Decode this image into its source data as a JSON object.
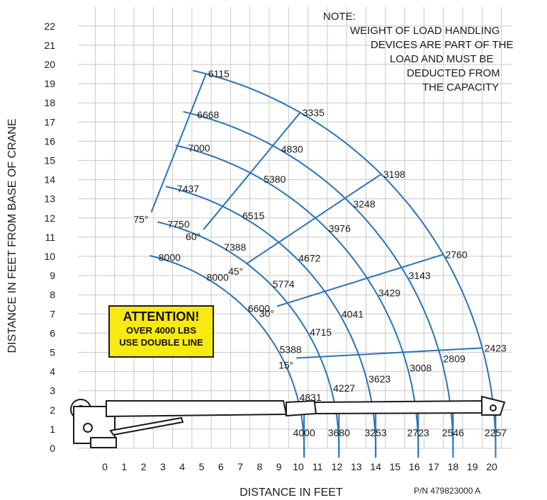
{
  "axes": {
    "y_title": "DISTANCE IN FEET FROM BASE OF CRANE",
    "x_title": "DISTANCE IN FEET",
    "x_ticks": [
      "0",
      "1",
      "2",
      "3",
      "4",
      "5",
      "6",
      "7",
      "8",
      "9",
      "10",
      "11",
      "12",
      "13",
      "14",
      "15",
      "16",
      "17",
      "18",
      "19",
      "20"
    ],
    "y_ticks": [
      "0",
      "1",
      "2",
      "3",
      "4",
      "5",
      "6",
      "7",
      "8",
      "9",
      "10",
      "11",
      "12",
      "13",
      "14",
      "15",
      "16",
      "17",
      "18",
      "19",
      "20",
      "21",
      "22"
    ]
  },
  "note": {
    "lines": [
      "NOTE:",
      "WEIGHT OF LOAD HANDLING",
      "DEVICES ARE PART OF THE",
      "LOAD AND MUST BE",
      "DEDUCTED FROM",
      "THE CAPACITY"
    ]
  },
  "attention": {
    "title": "ATTENTION!",
    "line1": "OVER 4000 LBS",
    "line2": "USE DOUBLE LINE"
  },
  "part_number": "P/N 479823000 A",
  "chart_data": {
    "type": "load-chart",
    "x_range": [
      0,
      20
    ],
    "y_range": [
      0,
      22
    ],
    "angles": [
      "15°",
      "30°",
      "45°",
      "60°",
      "75°"
    ],
    "radii": [
      10.3,
      12.1,
      14.0,
      16.2,
      18.0,
      20.2
    ],
    "arc_capacities": [
      {
        "radius": 10.3,
        "horizontal": "4000",
        "15°": "4831",
        "30°": "5388",
        "45°": "6600",
        "60°": "8000",
        "75°": "8000"
      },
      {
        "radius": 12.1,
        "horizontal": "3680",
        "15°": "4227",
        "30°": "4715",
        "45°": "5774",
        "60°": "7388",
        "75°": "7750"
      },
      {
        "radius": 14.0,
        "horizontal": "3253",
        "15°": "3623",
        "30°": "4041",
        "45°": "4672",
        "60°": "6515",
        "75°": "7437"
      },
      {
        "radius": 16.2,
        "horizontal": "2723",
        "15°": "3008",
        "30°": "3429",
        "45°": "3976",
        "60°": "5380",
        "75°": "7000"
      },
      {
        "radius": 18.0,
        "horizontal": "2546",
        "15°": "2809",
        "30°": "3143",
        "45°": "3248",
        "60°": "4830",
        "75°": "6668"
      },
      {
        "radius": 20.2,
        "horizontal": "2257",
        "15°": "2423",
        "30°": "2760",
        "45°": "3198",
        "60°": "3335",
        "75°": "6115"
      }
    ]
  }
}
